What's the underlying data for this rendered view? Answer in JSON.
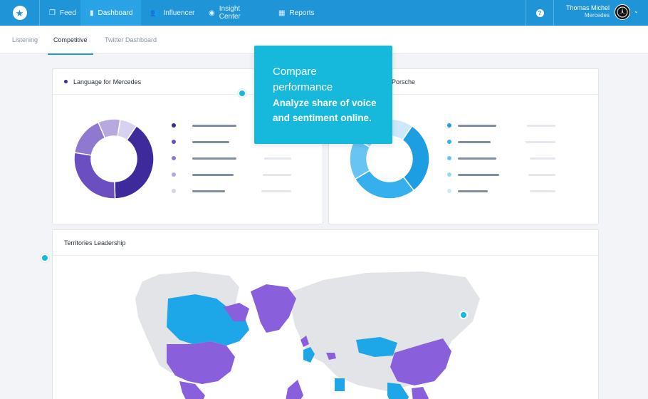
{
  "nav": {
    "items": [
      {
        "label": "Feed",
        "icon": "feed-icon",
        "glyph": "❐"
      },
      {
        "label": "Dashboard",
        "icon": "bar-chart-icon",
        "glyph": "▮"
      },
      {
        "label": "Influencer",
        "icon": "people-icon",
        "glyph": "👥"
      },
      {
        "label": "Insight Center",
        "icon": "compass-icon",
        "glyph": "◉"
      },
      {
        "label": "Reports",
        "icon": "grid-icon",
        "glyph": "▦"
      }
    ],
    "active": "Dashboard"
  },
  "user": {
    "name": "Thomas Michel",
    "org": "Mercedes"
  },
  "help_label": "?",
  "subnav": {
    "tabs": [
      "Listening",
      "Competitive",
      "Twitter Dashboard"
    ],
    "active": "Competitive"
  },
  "cards": {
    "mercedes": {
      "title_prefix": "Language for",
      "title_brand": "Mercedes",
      "donut_colors": [
        "#3f2a9c",
        "#6b4fc1",
        "#8f78cf",
        "#b7a8e0",
        "#d8d1ef"
      ],
      "donut_values": [
        40,
        28,
        16,
        9,
        7
      ]
    },
    "porsche": {
      "title_brand": "Porsche",
      "donut_colors": [
        "#1d9ee2",
        "#35afee",
        "#68c5f3",
        "#9ad6f6",
        "#cde9f9"
      ],
      "donut_values": [
        30,
        27,
        17,
        14,
        12
      ]
    },
    "territories": {
      "title": "Territories Leadership"
    }
  },
  "tooltip": {
    "title_line1": "Compare",
    "title_line2": "performance",
    "sub_line1": "Analyze share of voice",
    "sub_line2": "and sentiment online."
  },
  "colors": {
    "brand": "#1f95d8",
    "accent": "#16b9dc",
    "purple": "#8a5fdc",
    "blue": "#1ea7e8"
  }
}
